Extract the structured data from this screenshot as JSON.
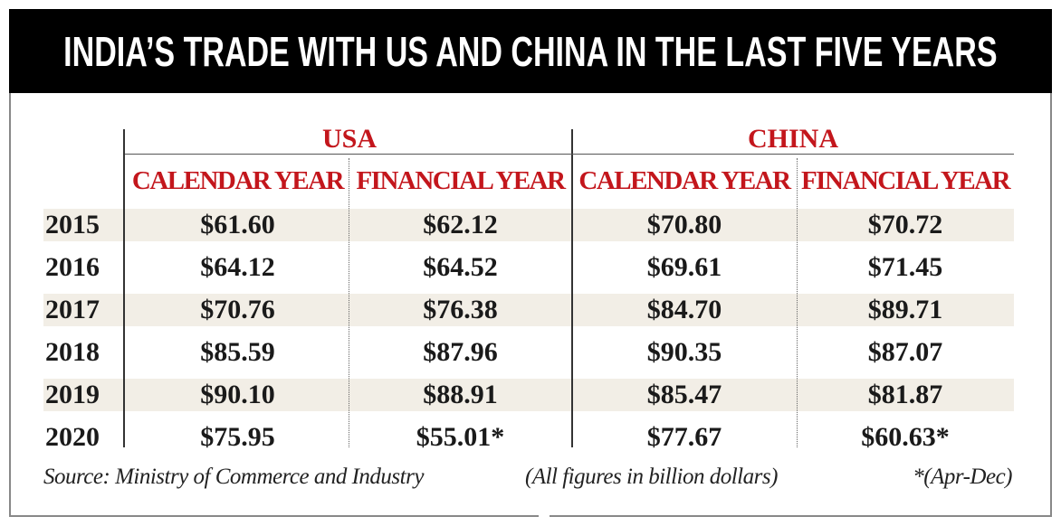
{
  "header": {
    "title": "INDIA’S TRADE WITH US AND CHINA IN THE LAST FIVE YEARS"
  },
  "table": {
    "groups": [
      "USA",
      "CHINA"
    ],
    "columns": [
      "CALENDAR YEAR",
      "FINANCIAL YEAR",
      "CALENDAR YEAR",
      "FINANCIAL YEAR"
    ],
    "rows": [
      [
        "2015",
        "$61.60",
        "$62.12",
        "$70.80",
        "$70.72"
      ],
      [
        "2016",
        "$64.12",
        "$64.52",
        "$69.61",
        "$71.45"
      ],
      [
        "2017",
        "$70.76",
        "$76.38",
        "$84.70",
        "$89.71"
      ],
      [
        "2018",
        "$85.59",
        "$87.96",
        "$90.35",
        "$87.07"
      ],
      [
        "2019",
        "$90.10",
        "$88.91",
        "$85.47",
        "$81.87"
      ],
      [
        "2020",
        "$75.95",
        "$55.01*",
        "$77.67",
        "$60.63*"
      ]
    ]
  },
  "footer": {
    "source": "Source: Ministry of Commerce and Industry",
    "units": "(All figures in billion dollars)",
    "note": "*(Apr-Dec)"
  }
}
